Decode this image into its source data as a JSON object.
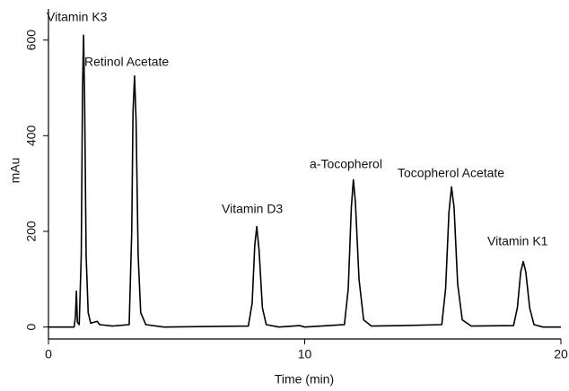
{
  "chart_data": {
    "type": "line",
    "x_label": "Time (min)",
    "y_label": "mAu",
    "xlim": [
      0,
      20
    ],
    "xticks": [
      0,
      10,
      20
    ],
    "ylim": [
      -25,
      665
    ],
    "yticks": [
      0,
      200,
      400,
      600
    ],
    "grid": false,
    "annotations": [
      "Vitamin K3",
      "Retinol Acetate",
      "Vitamin D3",
      "a-Tocopherol",
      "Tocopherol Acetate",
      "Vitamin K1"
    ],
    "series": [
      {
        "color": "#000000",
        "x": [
          0,
          1.0,
          1.05,
          1.09,
          1.13,
          1.2,
          1.28,
          1.33,
          1.37,
          1.41,
          1.47,
          1.55,
          1.65,
          1.9,
          2.0,
          2.5,
          3.15,
          3.25,
          3.3,
          3.36,
          3.42,
          3.5,
          3.6,
          3.8,
          4.5,
          7.8,
          7.95,
          8.05,
          8.13,
          8.22,
          8.35,
          8.5,
          9,
          9.8,
          10,
          11.55,
          11.7,
          11.82,
          11.9,
          11.98,
          12.12,
          12.3,
          12.6,
          13.8,
          15.35,
          15.5,
          15.63,
          15.73,
          15.83,
          15.97,
          16.15,
          16.5,
          18.15,
          18.3,
          18.43,
          18.53,
          18.63,
          18.78,
          18.95,
          19.3,
          20
        ],
        "values": [
          0,
          0,
          20,
          75,
          10,
          5,
          150,
          500,
          610,
          480,
          150,
          30,
          8,
          12,
          5,
          2,
          5,
          200,
          450,
          525,
          430,
          150,
          30,
          5,
          0,
          2,
          50,
          170,
          210,
          160,
          40,
          5,
          0,
          3,
          0,
          5,
          80,
          250,
          308,
          260,
          100,
          15,
          2,
          3,
          5,
          80,
          240,
          293,
          250,
          90,
          15,
          2,
          3,
          40,
          115,
          137,
          115,
          40,
          5,
          0,
          0
        ]
      }
    ]
  }
}
